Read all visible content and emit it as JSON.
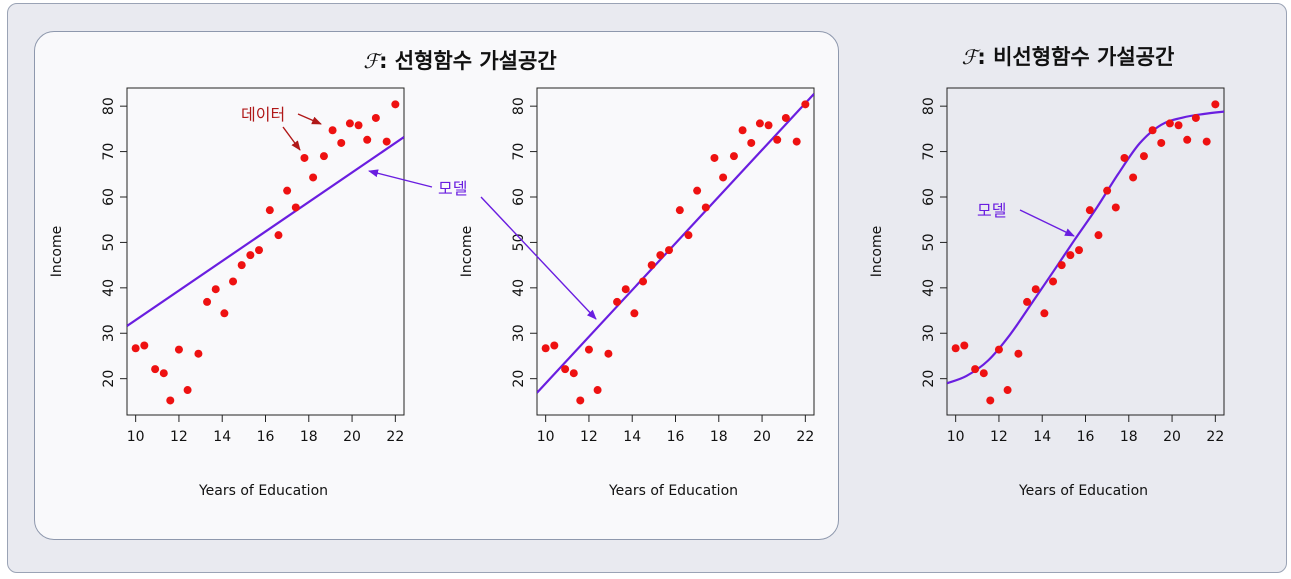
{
  "titles": {
    "linear_symbol": "ℱ",
    "linear_text": ": 선형함수 가설공간",
    "nonlinear_symbol": "ℱ",
    "nonlinear_text": ": 비선형함수 가설공간"
  },
  "annotations": {
    "data_label": "데이터",
    "model_label": "모델",
    "model_label_2": "모델"
  },
  "colors": {
    "points": "#ee1111",
    "model_line": "#6a1ee0",
    "data_annotation": "#b01818"
  },
  "chart_data": [
    {
      "type": "scatter",
      "overlay": "line",
      "xlabel": "Years of Education",
      "ylabel": "Income",
      "xlim": [
        9.6,
        22.4
      ],
      "ylim": [
        12,
        84
      ],
      "xticks": [
        10,
        12,
        14,
        16,
        18,
        20,
        22
      ],
      "yticks": [
        20,
        30,
        40,
        50,
        60,
        70,
        80
      ],
      "points": [
        [
          10.0,
          26.7
        ],
        [
          10.4,
          27.3
        ],
        [
          10.9,
          22.1
        ],
        [
          11.3,
          21.2
        ],
        [
          11.6,
          15.2
        ],
        [
          12.0,
          26.4
        ],
        [
          12.4,
          17.5
        ],
        [
          12.9,
          25.5
        ],
        [
          13.3,
          36.9
        ],
        [
          13.7,
          39.7
        ],
        [
          14.1,
          34.4
        ],
        [
          14.5,
          41.4
        ],
        [
          14.9,
          45.0
        ],
        [
          15.3,
          47.2
        ],
        [
          15.7,
          48.3
        ],
        [
          16.2,
          57.1
        ],
        [
          16.6,
          51.6
        ],
        [
          17.0,
          61.4
        ],
        [
          17.4,
          57.7
        ],
        [
          17.8,
          68.6
        ],
        [
          18.2,
          64.3
        ],
        [
          18.7,
          69.0
        ],
        [
          19.1,
          74.7
        ],
        [
          19.5,
          71.9
        ],
        [
          19.9,
          76.2
        ],
        [
          20.3,
          75.8
        ],
        [
          20.7,
          72.6
        ],
        [
          21.1,
          77.4
        ],
        [
          21.6,
          72.2
        ],
        [
          22.0,
          80.4
        ]
      ],
      "model": {
        "kind": "line",
        "x": [
          9.6,
          22.4
        ],
        "y": [
          31.6,
          73.2
        ]
      }
    },
    {
      "type": "scatter",
      "overlay": "line",
      "xlabel": "Years of Education",
      "ylabel": "Income",
      "xlim": [
        9.6,
        22.4
      ],
      "ylim": [
        12,
        84
      ],
      "xticks": [
        10,
        12,
        14,
        16,
        18,
        20,
        22
      ],
      "yticks": [
        20,
        30,
        40,
        50,
        60,
        70,
        80
      ],
      "points": [
        [
          10.0,
          26.7
        ],
        [
          10.4,
          27.3
        ],
        [
          10.9,
          22.1
        ],
        [
          11.3,
          21.2
        ],
        [
          11.6,
          15.2
        ],
        [
          12.0,
          26.4
        ],
        [
          12.4,
          17.5
        ],
        [
          12.9,
          25.5
        ],
        [
          13.3,
          36.9
        ],
        [
          13.7,
          39.7
        ],
        [
          14.1,
          34.4
        ],
        [
          14.5,
          41.4
        ],
        [
          14.9,
          45.0
        ],
        [
          15.3,
          47.2
        ],
        [
          15.7,
          48.3
        ],
        [
          16.2,
          57.1
        ],
        [
          16.6,
          51.6
        ],
        [
          17.0,
          61.4
        ],
        [
          17.4,
          57.7
        ],
        [
          17.8,
          68.6
        ],
        [
          18.2,
          64.3
        ],
        [
          18.7,
          69.0
        ],
        [
          19.1,
          74.7
        ],
        [
          19.5,
          71.9
        ],
        [
          19.9,
          76.2
        ],
        [
          20.3,
          75.8
        ],
        [
          20.7,
          72.6
        ],
        [
          21.1,
          77.4
        ],
        [
          21.6,
          72.2
        ],
        [
          22.0,
          80.4
        ]
      ],
      "model": {
        "kind": "line",
        "x": [
          9.6,
          22.4
        ],
        "y": [
          16.9,
          82.7
        ]
      }
    },
    {
      "type": "scatter",
      "overlay": "curve",
      "xlabel": "Years of Education",
      "ylabel": "Income",
      "xlim": [
        9.6,
        22.4
      ],
      "ylim": [
        12,
        84
      ],
      "xticks": [
        10,
        12,
        14,
        16,
        18,
        20,
        22
      ],
      "yticks": [
        20,
        30,
        40,
        50,
        60,
        70,
        80
      ],
      "points": [
        [
          10.0,
          26.7
        ],
        [
          10.4,
          27.3
        ],
        [
          10.9,
          22.1
        ],
        [
          11.3,
          21.2
        ],
        [
          11.6,
          15.2
        ],
        [
          12.0,
          26.4
        ],
        [
          12.4,
          17.5
        ],
        [
          12.9,
          25.5
        ],
        [
          13.3,
          36.9
        ],
        [
          13.7,
          39.7
        ],
        [
          14.1,
          34.4
        ],
        [
          14.5,
          41.4
        ],
        [
          14.9,
          45.0
        ],
        [
          15.3,
          47.2
        ],
        [
          15.7,
          48.3
        ],
        [
          16.2,
          57.1
        ],
        [
          16.6,
          51.6
        ],
        [
          17.0,
          61.4
        ],
        [
          17.4,
          57.7
        ],
        [
          17.8,
          68.6
        ],
        [
          18.2,
          64.3
        ],
        [
          18.7,
          69.0
        ],
        [
          19.1,
          74.7
        ],
        [
          19.5,
          71.9
        ],
        [
          19.9,
          76.2
        ],
        [
          20.3,
          75.8
        ],
        [
          20.7,
          72.6
        ],
        [
          21.1,
          77.4
        ],
        [
          21.6,
          72.2
        ],
        [
          22.0,
          80.4
        ]
      ],
      "model": {
        "kind": "curve",
        "x": [
          9.6,
          10.5,
          11.5,
          12.5,
          13.5,
          14.5,
          15.5,
          16.5,
          17.5,
          18.5,
          19.5,
          20.5,
          21.5,
          22.4
        ],
        "y": [
          19.0,
          20.6,
          24.0,
          29.6,
          36.5,
          43.5,
          50.6,
          57.5,
          65.0,
          71.8,
          75.9,
          77.5,
          78.3,
          78.8
        ]
      }
    }
  ]
}
